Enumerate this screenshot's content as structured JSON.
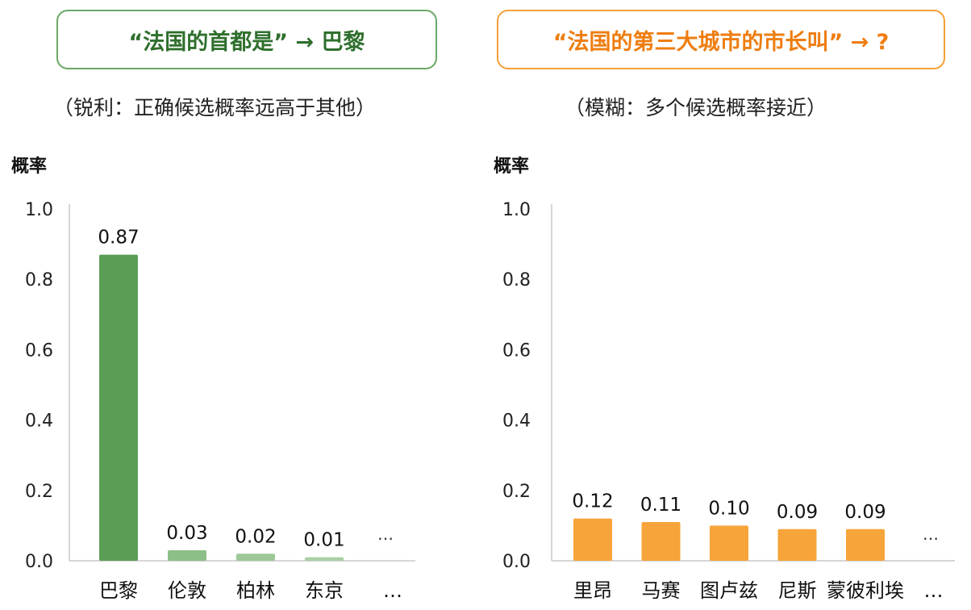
{
  "chart_data": [
    {
      "type": "bar",
      "title": "“法国的首都是” → 巴黎",
      "subtitle": "（锐利：正确候选概率远高于其他）",
      "ylabel": "概率",
      "ylim": [
        0,
        1.0
      ],
      "yticks": [
        "0.0",
        "0.2",
        "0.4",
        "0.6",
        "0.8",
        "1.0"
      ],
      "categories": [
        "巴黎",
        "伦敦",
        "柏林",
        "东京"
      ],
      "values": [
        0.87,
        0.03,
        0.02,
        0.01
      ],
      "value_labels": [
        "0.87",
        "0.03",
        "0.02",
        "0.01"
      ],
      "ellipsis": "…",
      "ellipsis_label": "…",
      "colors": [
        "#5a9e56",
        "#8dbf88",
        "#9dc898",
        "#a8cfa3"
      ],
      "accent": "#6aa866"
    },
    {
      "type": "bar",
      "title": "“法国的第三大城市的市长叫” → ?",
      "subtitle": "（模糊：多个候选概率接近）",
      "ylabel": "概率",
      "ylim": [
        0,
        1.0
      ],
      "yticks": [
        "0.0",
        "0.2",
        "0.4",
        "0.6",
        "0.8",
        "1.0"
      ],
      "categories": [
        "里昂",
        "马赛",
        "图卢兹",
        "尼斯",
        "蒙彼利埃"
      ],
      "values": [
        0.12,
        0.11,
        0.1,
        0.09,
        0.09
      ],
      "value_labels": [
        "0.12",
        "0.11",
        "0.10",
        "0.09",
        "0.09"
      ],
      "ellipsis": "…",
      "ellipsis_label": "…",
      "colors": [
        "#f7a43a",
        "#f7a43a",
        "#f7a43a",
        "#f7a43a",
        "#f7a43a"
      ],
      "accent": "#f4a037"
    }
  ]
}
